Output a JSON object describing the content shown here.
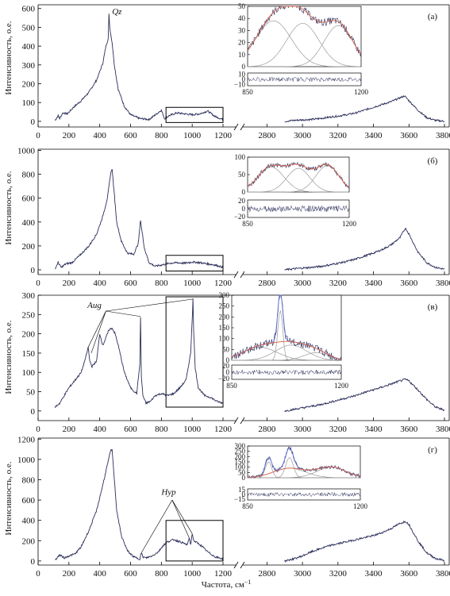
{
  "figure": {
    "ylabel": "Интенсивность, о.е.",
    "xlabel": "Частота, см",
    "xlabel_sup": "−1",
    "colors": {
      "spectrum": "#2b2e5a",
      "fit": "#d9634a",
      "component": "#9a9a9a",
      "peak": "#5b6fd6"
    }
  },
  "chart_data": [
    {
      "type": "line",
      "panel_label": "(а)",
      "annotations": [
        "Qz"
      ],
      "x_ticks": [
        "0",
        "200",
        "400",
        "600",
        "800",
        "1000",
        "1200",
        "2800",
        "3000",
        "3200",
        "3400",
        "3600",
        "3800"
      ],
      "y_ticks": [
        "0",
        "100",
        "200",
        "300",
        "400",
        "500",
        "600"
      ],
      "ylim": [
        -30,
        620
      ],
      "x_break": [
        1200,
        2700
      ],
      "series": [
        {
          "x": [
            110,
            130,
            140,
            160,
            190,
            230,
            280,
            330,
            380,
            420,
            440,
            455,
            460,
            465,
            470,
            480,
            495,
            520,
            560,
            600,
            660,
            720,
            770,
            800,
            820,
            850,
            900,
            950,
            1000,
            1050,
            1100,
            1150,
            1200
          ],
          "y": [
            5,
            30,
            15,
            45,
            40,
            75,
            110,
            155,
            220,
            310,
            400,
            440,
            570,
            500,
            470,
            420,
            300,
            170,
            80,
            35,
            15,
            10,
            40,
            60,
            15,
            30,
            45,
            40,
            35,
            40,
            55,
            25,
            10
          ]
        },
        {
          "x": [
            2900,
            2950,
            3000,
            3050,
            3100,
            3150,
            3200,
            3250,
            3300,
            3350,
            3400,
            3450,
            3500,
            3550,
            3575,
            3600,
            3650,
            3700,
            3750,
            3800
          ],
          "y": [
            0,
            5,
            8,
            10,
            15,
            22,
            28,
            35,
            45,
            60,
            75,
            90,
            105,
            125,
            135,
            110,
            60,
            20,
            5,
            0
          ]
        }
      ],
      "inset": {
        "x_ticks": [
          "850",
          "1200"
        ],
        "y_ticks_main": [
          "0",
          "10",
          "20",
          "30",
          "40",
          "50"
        ],
        "ylim_main": [
          0,
          50
        ],
        "y_ticks_resid": [
          "10",
          "0",
          "−10"
        ],
        "ylim_resid": [
          -12,
          12
        ],
        "components": [
          {
            "center": 930,
            "amp": 38,
            "sigma": 55
          },
          {
            "center": 1020,
            "amp": 36,
            "sigma": 50
          },
          {
            "center": 1130,
            "amp": 34,
            "sigma": 45
          }
        ]
      }
    },
    {
      "type": "line",
      "panel_label": "(б)",
      "annotations": [],
      "x_ticks": [
        "0",
        "200",
        "400",
        "600",
        "800",
        "1000",
        "1200",
        "2800",
        "3000",
        "3200",
        "3400",
        "3600",
        "3800"
      ],
      "y_ticks": [
        "0",
        "200",
        "400",
        "600",
        "800",
        "1000"
      ],
      "ylim": [
        -40,
        1010
      ],
      "x_break": [
        1200,
        2700
      ],
      "series": [
        {
          "x": [
            110,
            130,
            150,
            180,
            220,
            270,
            330,
            380,
            420,
            450,
            470,
            480,
            490,
            510,
            540,
            580,
            620,
            650,
            665,
            670,
            690,
            720,
            760,
            800,
            850,
            900,
            950,
            1000,
            1050,
            1100,
            1150,
            1200
          ],
          "y": [
            10,
            60,
            20,
            50,
            60,
            120,
            200,
            300,
            450,
            600,
            800,
            850,
            700,
            400,
            240,
            140,
            130,
            220,
            420,
            360,
            180,
            60,
            30,
            40,
            55,
            60,
            55,
            65,
            60,
            50,
            40,
            20
          ]
        },
        {
          "x": [
            2900,
            2950,
            3000,
            3050,
            3100,
            3150,
            3200,
            3250,
            3300,
            3350,
            3400,
            3450,
            3500,
            3550,
            3580,
            3600,
            3650,
            3700,
            3750,
            3800
          ],
          "y": [
            0,
            8,
            15,
            20,
            28,
            40,
            55,
            70,
            90,
            115,
            140,
            170,
            210,
            270,
            350,
            300,
            150,
            60,
            20,
            5
          ]
        }
      ],
      "inset": {
        "x_ticks": [
          "850",
          "1200"
        ],
        "y_ticks_main": [
          "0",
          "50",
          "100"
        ],
        "ylim_main": [
          0,
          100
        ],
        "y_ticks_resid": [
          "20",
          "0",
          "−20"
        ],
        "ylim_resid": [
          -22,
          22
        ],
        "components": [
          {
            "center": 930,
            "amp": 72,
            "sigma": 45
          },
          {
            "center": 1025,
            "amp": 68,
            "sigma": 40
          },
          {
            "center": 1125,
            "amp": 76,
            "sigma": 40
          }
        ]
      }
    },
    {
      "type": "line",
      "panel_label": "(в)",
      "annotations": [
        "Aug"
      ],
      "x_ticks": [
        "0",
        "200",
        "400",
        "600",
        "800",
        "1000",
        "1200",
        "2800",
        "3000",
        "3200",
        "3400",
        "3600",
        "3800"
      ],
      "y_ticks": [
        "0",
        "50",
        "100",
        "150",
        "200",
        "250",
        "300"
      ],
      "ylim": [
        -25,
        300
      ],
      "x_break": [
        1200,
        2700
      ],
      "series": [
        {
          "x": [
            110,
            140,
            170,
            200,
            240,
            280,
            310,
            325,
            335,
            350,
            380,
            400,
            420,
            440,
            460,
            480,
            500,
            520,
            560,
            600,
            640,
            660,
            665,
            670,
            680,
            700,
            730,
            760,
            800,
            840,
            880,
            920,
            960,
            990,
            1000,
            1005,
            1010,
            1020,
            1040,
            1080,
            1120,
            1160,
            1200
          ],
          "y": [
            10,
            20,
            40,
            60,
            80,
            100,
            140,
            165,
            130,
            115,
            130,
            200,
            170,
            190,
            210,
            215,
            200,
            170,
            100,
            60,
            45,
            120,
            245,
            90,
            40,
            20,
            25,
            40,
            45,
            40,
            45,
            60,
            80,
            150,
            240,
            290,
            200,
            110,
            60,
            40,
            35,
            25,
            20
          ]
        },
        {
          "x": [
            2900,
            2950,
            3000,
            3050,
            3100,
            3150,
            3200,
            3250,
            3300,
            3350,
            3400,
            3450,
            3500,
            3550,
            3580,
            3600,
            3650,
            3700,
            3750,
            3800
          ],
          "y": [
            0,
            4,
            8,
            12,
            16,
            22,
            28,
            34,
            40,
            48,
            55,
            62,
            70,
            78,
            82,
            78,
            55,
            30,
            10,
            2
          ]
        }
      ],
      "inset": {
        "x_ticks": [
          "850",
          "1200"
        ],
        "y_ticks_main": [
          "0",
          "50",
          "100",
          "150",
          "200",
          "250",
          "300"
        ],
        "ylim_main": [
          0,
          300
        ],
        "y_ticks_resid": [
          "20",
          "0",
          "−20"
        ],
        "ylim_resid": [
          -22,
          22
        ],
        "components": [
          {
            "center": 940,
            "amp": 60,
            "sigma": 55
          },
          {
            "center": 1005,
            "amp": 230,
            "sigma": 8
          },
          {
            "center": 1040,
            "amp": 70,
            "sigma": 50
          },
          {
            "center": 1120,
            "amp": 35,
            "sigma": 40
          }
        ]
      }
    },
    {
      "type": "line",
      "panel_label": "(г)",
      "annotations": [
        "Hyp"
      ],
      "x_ticks": [
        "0",
        "200",
        "400",
        "600",
        "800",
        "1000",
        "1200",
        "2800",
        "3000",
        "3200",
        "3400",
        "3600",
        "3800"
      ],
      "y_ticks": [
        "0",
        "200",
        "400",
        "600",
        "800",
        "1000",
        "1200"
      ],
      "ylim": [
        -40,
        1210
      ],
      "x_break": [
        1200,
        2700
      ],
      "series": [
        {
          "x": [
            110,
            140,
            170,
            200,
            240,
            280,
            330,
            380,
            420,
            450,
            470,
            480,
            490,
            510,
            540,
            580,
            620,
            660,
            670,
            680,
            700,
            740,
            780,
            810,
            840,
            880,
            920,
            950,
            970,
            980,
            990,
            1000,
            1010,
            1030,
            1060,
            1100,
            1150,
            1200
          ],
          "y": [
            10,
            60,
            30,
            50,
            70,
            140,
            300,
            500,
            750,
            950,
            1080,
            1100,
            900,
            500,
            250,
            100,
            40,
            20,
            80,
            40,
            30,
            50,
            90,
            150,
            190,
            210,
            190,
            170,
            160,
            230,
            160,
            270,
            200,
            180,
            150,
            90,
            40,
            20
          ]
        },
        {
          "x": [
            2900,
            2950,
            3000,
            3050,
            3100,
            3150,
            3200,
            3250,
            3300,
            3350,
            3400,
            3450,
            3500,
            3550,
            3580,
            3600,
            3650,
            3700,
            3750,
            3800
          ],
          "y": [
            0,
            20,
            50,
            90,
            120,
            150,
            170,
            190,
            210,
            230,
            250,
            280,
            320,
            370,
            390,
            360,
            200,
            80,
            25,
            5
          ]
        }
      ],
      "inset": {
        "x_ticks": [
          "850",
          "1200"
        ],
        "y_ticks_main": [
          "0",
          "50",
          "100",
          "150",
          "200",
          "250",
          "300"
        ],
        "ylim_main": [
          0,
          300
        ],
        "y_ticks_resid": [
          "15",
          "0",
          "−15"
        ],
        "ylim_resid": [
          -17,
          17
        ],
        "components": [
          {
            "center": 915,
            "amp": 150,
            "sigma": 10
          },
          {
            "center": 980,
            "amp": 190,
            "sigma": 12
          },
          {
            "center": 980,
            "amp": 90,
            "sigma": 50
          },
          {
            "center": 1110,
            "amp": 100,
            "sigma": 45
          }
        ]
      }
    }
  ]
}
